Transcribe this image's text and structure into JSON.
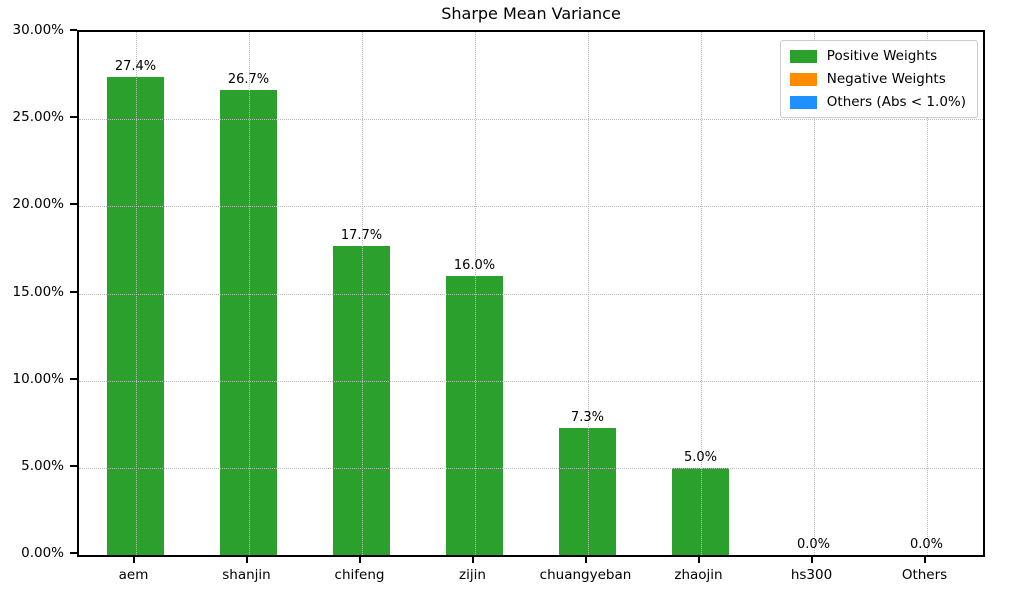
{
  "title": "Sharpe Mean Variance",
  "colors": {
    "positive": "#2ca02c",
    "negative": "#ff8c00",
    "others": "#1e90ff",
    "grid": "#bdbdbd",
    "axis": "#000000",
    "background": "#ffffff",
    "legend_border": "#cccccc"
  },
  "legend": {
    "items": [
      {
        "label": "Positive Weights",
        "color_key": "positive"
      },
      {
        "label": "Negative Weights",
        "color_key": "negative"
      },
      {
        "label": "Others (Abs < 1.0%)",
        "color_key": "others"
      }
    ]
  },
  "chart_data": {
    "type": "bar",
    "title": "Sharpe Mean Variance",
    "categories": [
      "aem",
      "shanjin",
      "chifeng",
      "zijin",
      "chuangyeban",
      "zhaojin",
      "hs300",
      "Others"
    ],
    "values": [
      27.4,
      26.7,
      17.7,
      16.0,
      7.3,
      5.0,
      0.0,
      0.0
    ],
    "bar_labels": [
      "27.4%",
      "26.7%",
      "17.7%",
      "16.0%",
      "7.3%",
      "5.0%",
      "0.0%",
      "0.0%"
    ],
    "series": [
      {
        "name": "Positive Weights",
        "values": [
          27.4,
          26.7,
          17.7,
          16.0,
          7.3,
          5.0,
          0.0,
          0.0
        ]
      }
    ],
    "xlabel": "",
    "ylabel": "",
    "ylim": [
      0,
      30
    ],
    "ytick_step": 5,
    "ytick_labels": [
      "0.00%",
      "5.00%",
      "10.00%",
      "15.00%",
      "20.00%",
      "25.00%",
      "30.00%"
    ],
    "grid": true,
    "grid_style": "dotted",
    "legend_position": "upper right",
    "bar_width_fraction": 0.5
  }
}
